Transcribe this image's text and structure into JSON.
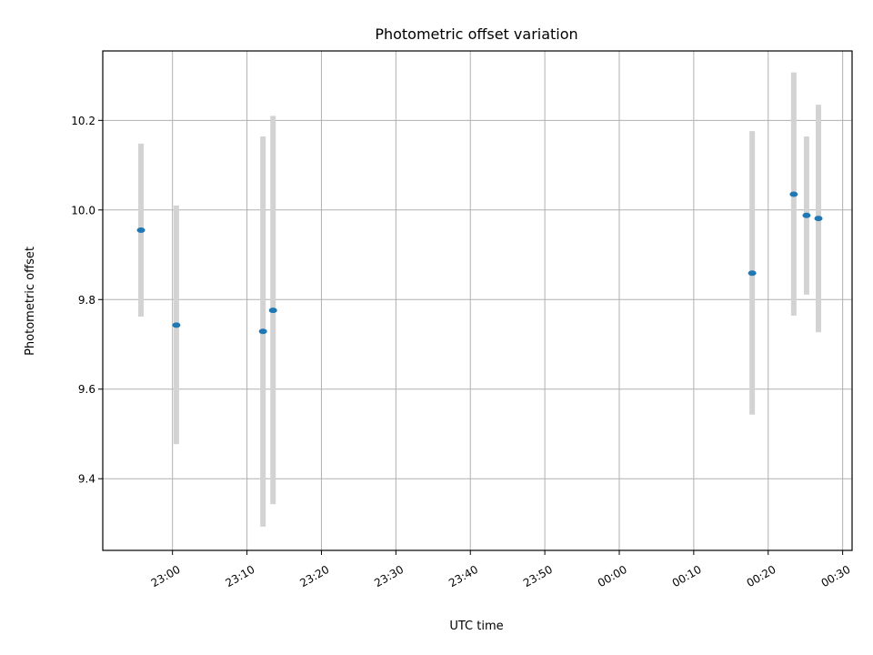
{
  "chart_data": {
    "type": "scatter",
    "title": "Photometric offset variation",
    "xlabel": "UTC time",
    "ylabel": "Photometric offset",
    "x_ticks": [
      "23:00",
      "23:10",
      "23:20",
      "23:30",
      "23:40",
      "23:50",
      "00:00",
      "00:10",
      "00:20",
      "00:30"
    ],
    "y_ticks": [
      "9.4",
      "9.6",
      "9.8",
      "10.0",
      "10.2"
    ],
    "xlim": [
      "22:50:38",
      "00:31:16"
    ],
    "ylim": [
      9.24,
      10.355
    ],
    "grid": true,
    "error_bar_color": "#d3d3d3",
    "point_color": "#1f77b4",
    "points": [
      {
        "x": "22:55:46",
        "y": 9.955,
        "y_low": 9.762,
        "y_high": 10.148
      },
      {
        "x": "23:00:31",
        "y": 9.743,
        "y_low": 9.477,
        "y_high": 10.01
      },
      {
        "x": "23:12:09",
        "y": 9.729,
        "y_low": 9.293,
        "y_high": 10.164
      },
      {
        "x": "23:13:30",
        "y": 9.776,
        "y_low": 9.343,
        "y_high": 10.21
      },
      {
        "x": "00:17:51",
        "y": 9.859,
        "y_low": 9.543,
        "y_high": 10.176
      },
      {
        "x": "00:23:26",
        "y": 10.035,
        "y_low": 9.764,
        "y_high": 10.307
      },
      {
        "x": "00:25:09",
        "y": 9.988,
        "y_low": 9.811,
        "y_high": 10.164
      },
      {
        "x": "00:26:45",
        "y": 9.981,
        "y_low": 9.727,
        "y_high": 10.235
      }
    ]
  }
}
